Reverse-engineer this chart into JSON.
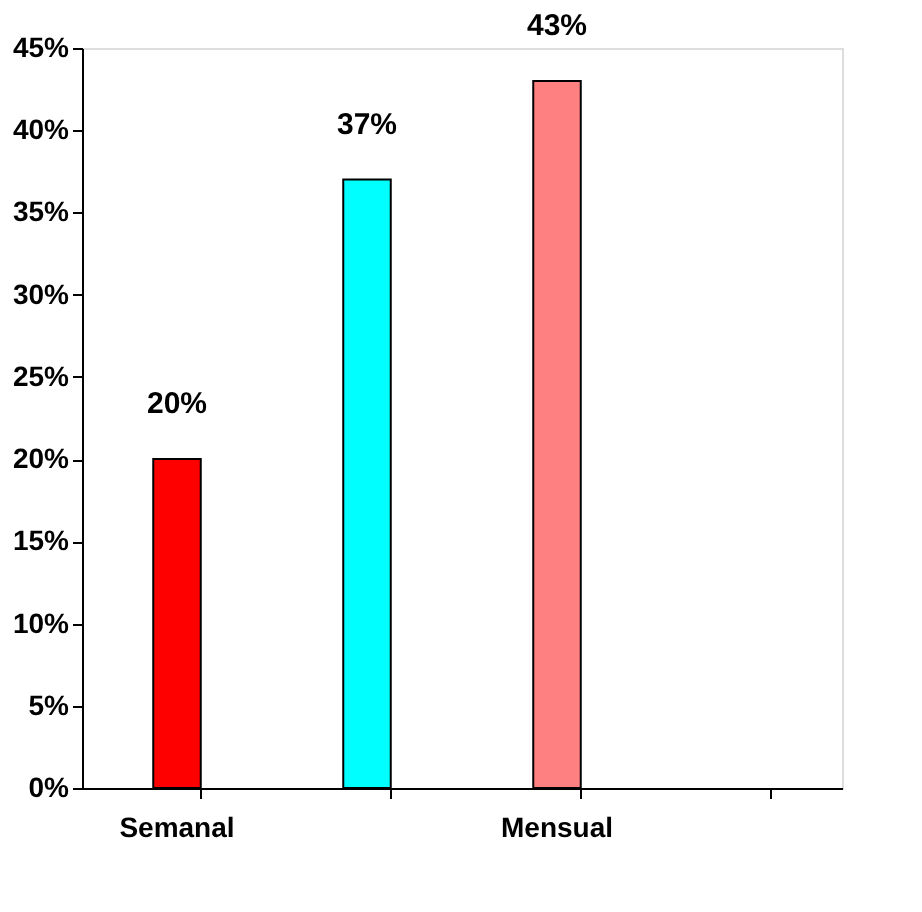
{
  "chart_data": {
    "type": "bar",
    "categories": [
      "Semanal",
      null,
      "Mensual",
      null
    ],
    "values": [
      20,
      37,
      43,
      null
    ],
    "colors": [
      "#ff0000",
      "#00ffff",
      "#ff8080",
      "#808080"
    ],
    "value_labels": [
      "20%",
      "37%",
      "43%",
      null
    ],
    "ylim": [
      0,
      45
    ],
    "yticks": [
      {
        "value": 0,
        "label": "0%"
      },
      {
        "value": 5,
        "label": "5%"
      },
      {
        "value": 10,
        "label": "10%"
      },
      {
        "value": 15,
        "label": "15%"
      },
      {
        "value": 20,
        "label": "20%"
      },
      {
        "value": 25,
        "label": "25%"
      },
      {
        "value": 30,
        "label": "30%"
      },
      {
        "value": 35,
        "label": "35%"
      },
      {
        "value": 40,
        "label": "40%"
      },
      {
        "value": 45,
        "label": "45%"
      }
    ],
    "grid": false
  }
}
